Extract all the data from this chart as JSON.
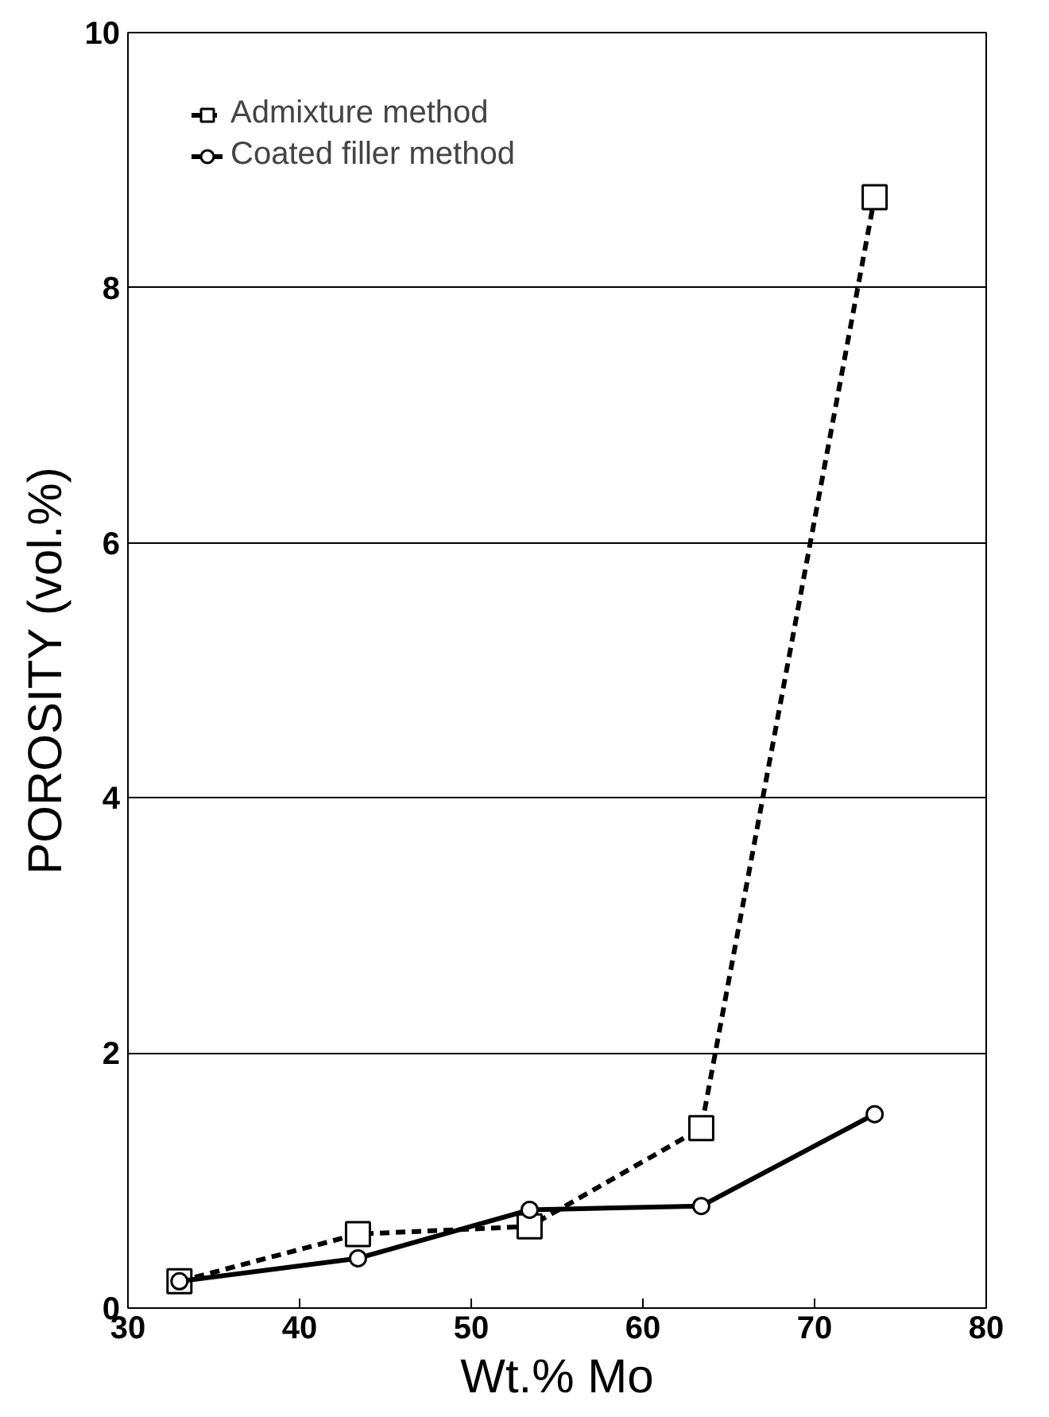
{
  "chart_data": {
    "type": "line",
    "xlabel": "Wt.% Mo",
    "ylabel": "POROSITY (vol.%)",
    "x": [
      33,
      43.4,
      53.4,
      63.4,
      73.5
    ],
    "series": [
      {
        "name": "Admixture method",
        "color": "#000000",
        "values": [
          0.21,
          0.58,
          0.64,
          1.41,
          8.71
        ],
        "marker": "square",
        "line_style": "dashed"
      },
      {
        "name": "Coated filler method",
        "color": "#000000",
        "values": [
          0.21,
          0.39,
          0.77,
          0.8,
          1.52
        ],
        "marker": "circle",
        "line_style": "solid"
      }
    ],
    "xlim": [
      30,
      80
    ],
    "xticks": [
      30,
      40,
      50,
      60,
      70,
      80
    ],
    "ylim": [
      0,
      10
    ],
    "yticks": [
      0,
      2,
      4,
      6,
      8,
      10
    ],
    "grid": "y",
    "legend": "top left"
  }
}
